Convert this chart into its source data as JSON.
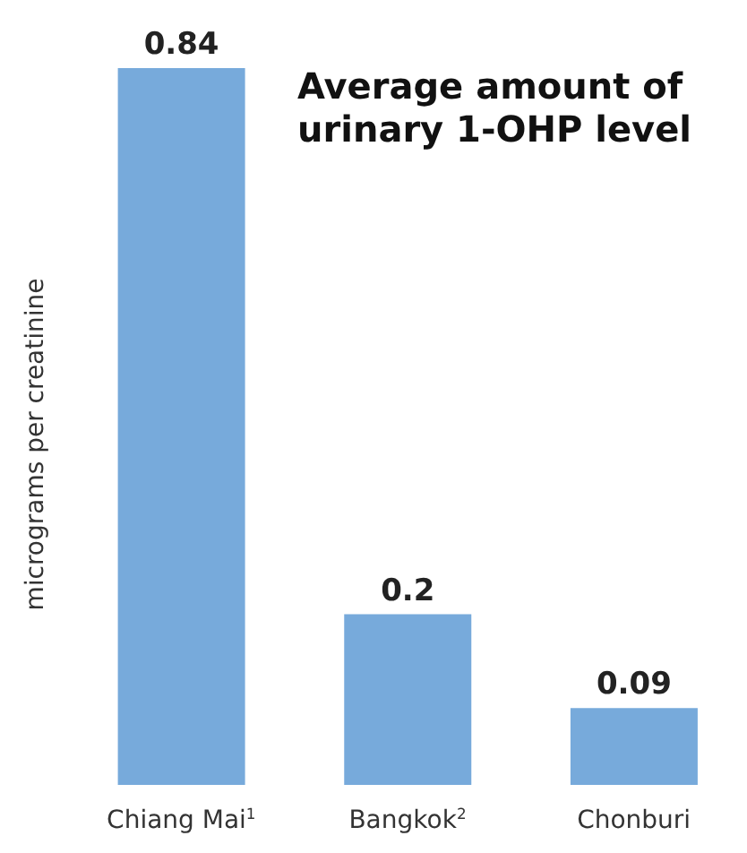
{
  "chart_data": {
    "type": "bar",
    "title": "Average amount of urinary 1-OHP level",
    "ylabel": "micrograms per creatinine",
    "categories": [
      "Chiang Mai$^{1}$",
      "Bangkok$^{2}$",
      "Chonburi"
    ],
    "values": [
      0.84,
      0.2,
      0.09
    ],
    "color": "#77aadb",
    "data_labels": true
  }
}
